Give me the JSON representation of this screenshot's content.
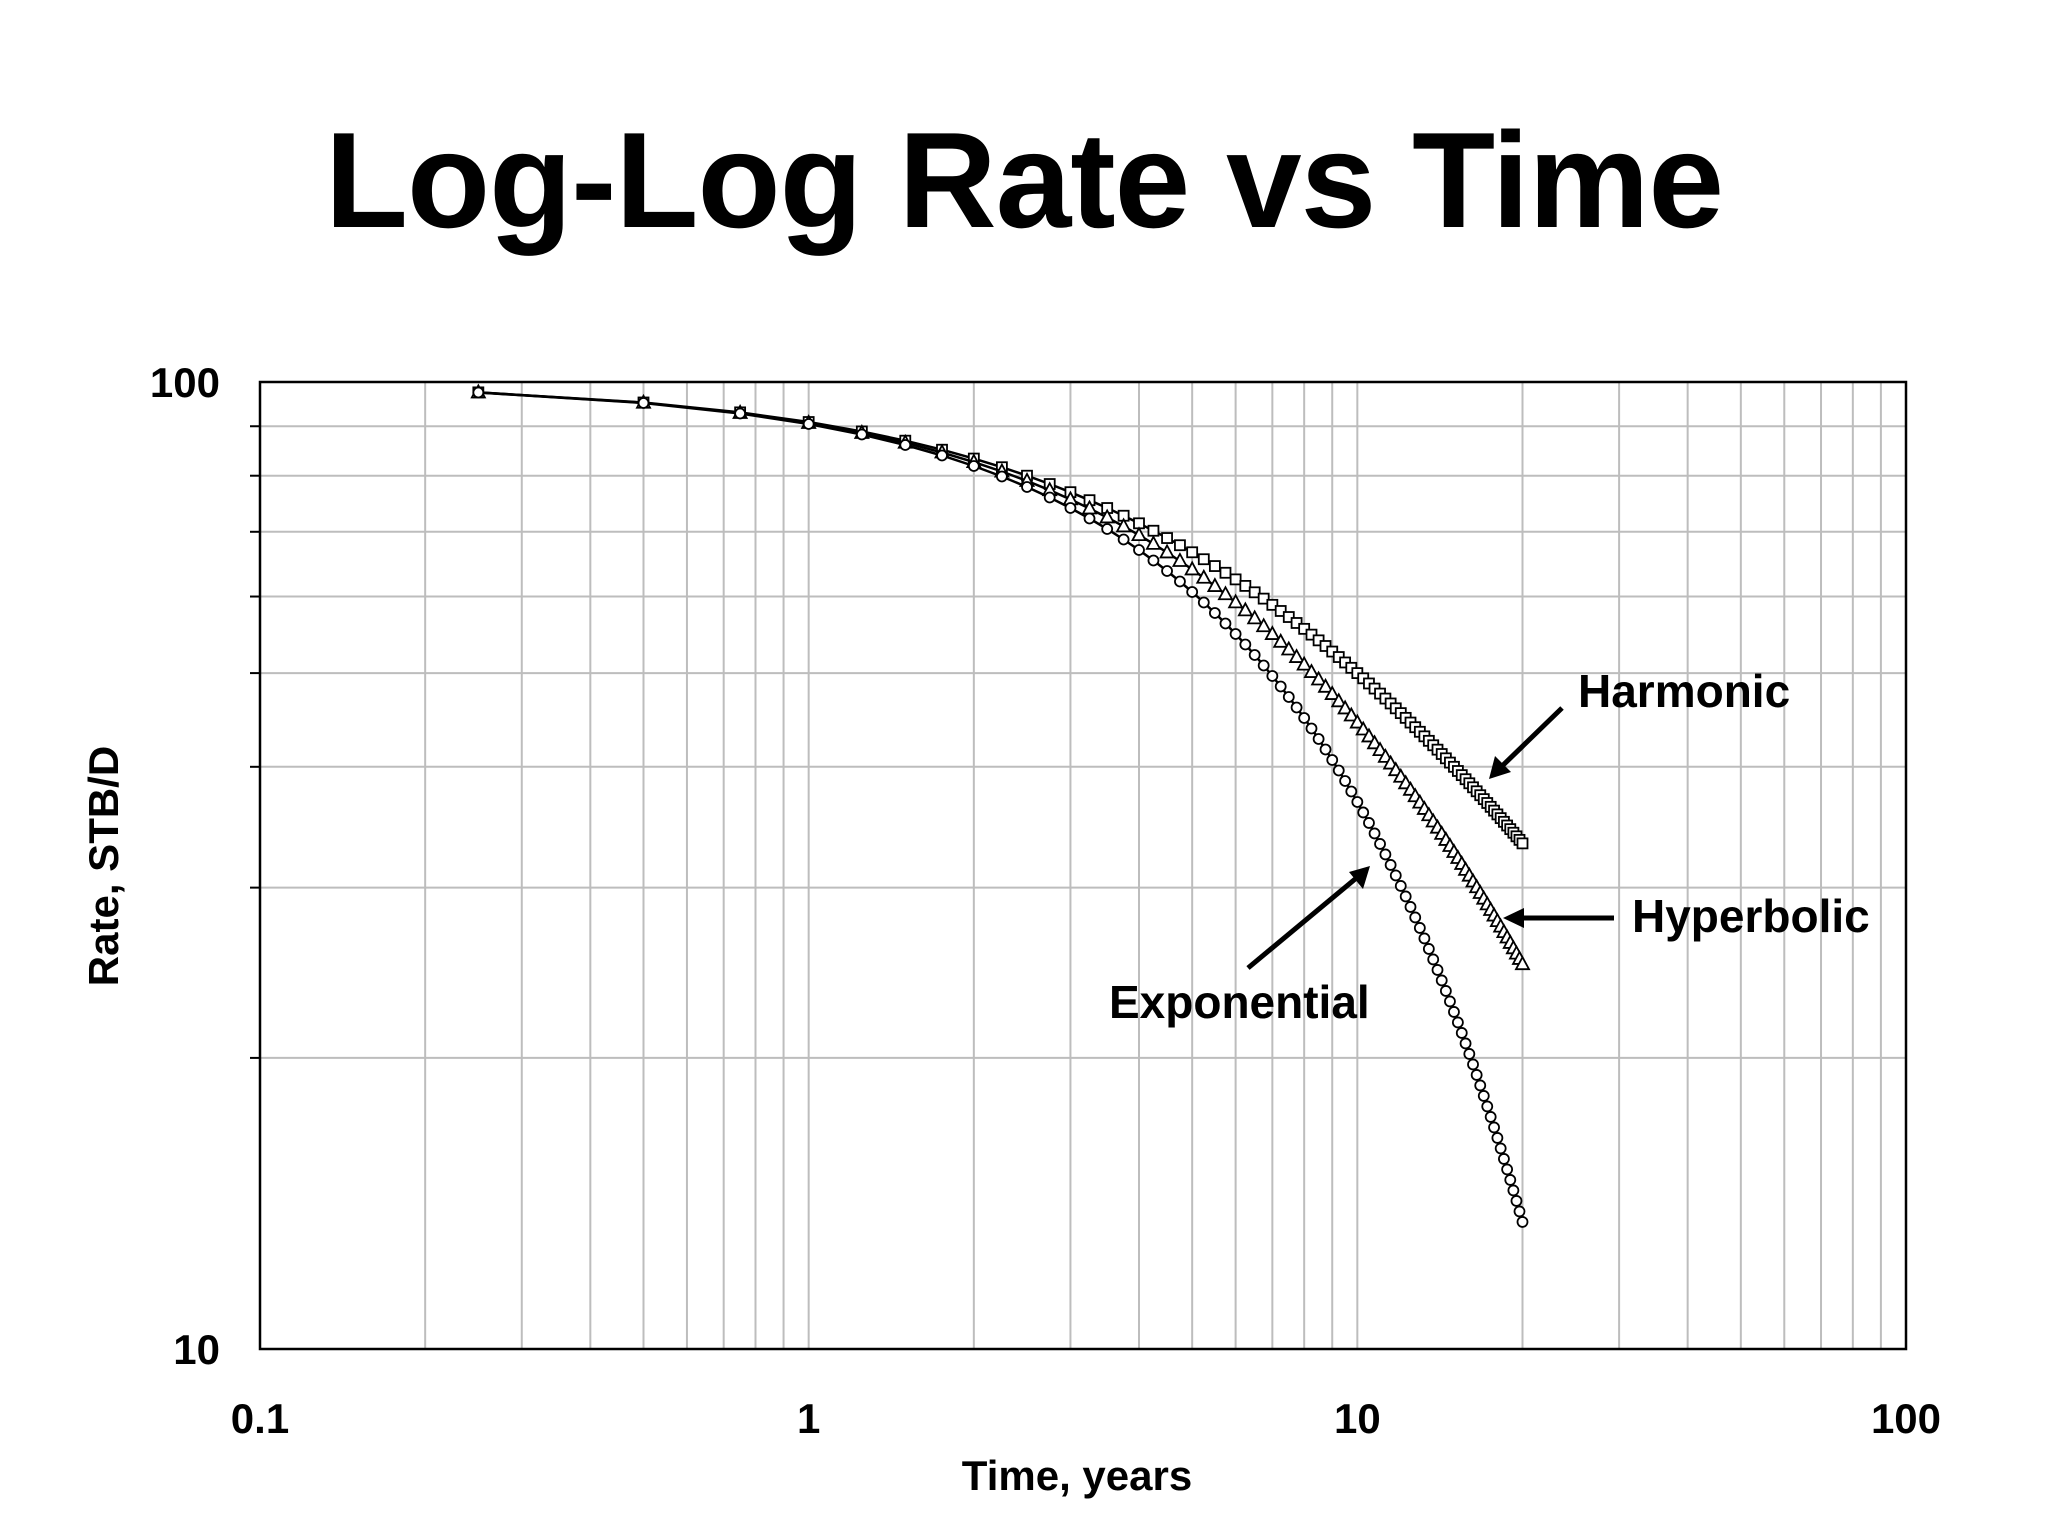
{
  "chart_data": {
    "type": "scatter",
    "title": "Log-Log Rate vs Time",
    "xlabel": "Time, years",
    "ylabel": "Rate, STB/D",
    "xscale": "log",
    "yscale": "log",
    "xlim": [
      0.1,
      100
    ],
    "ylim": [
      10,
      100
    ],
    "xticks": [
      "0.1",
      "1",
      "10",
      "100"
    ],
    "yticks": [
      "10",
      "100"
    ],
    "grid": true,
    "legend": "none",
    "annotations": [
      {
        "text": "Harmonic",
        "series": "Harmonic"
      },
      {
        "text": "Hyperbolic",
        "series": "Hyperbolic"
      },
      {
        "text": "Exponential",
        "series": "Exponential"
      }
    ],
    "series": [
      {
        "name": "Harmonic",
        "marker": "square",
        "qi": 100,
        "di": 0.1,
        "b": 1,
        "x_start": 0.25,
        "x_end": 20,
        "x_step": 0.25
      },
      {
        "name": "Hyperbolic",
        "marker": "triangle",
        "qi": 100,
        "di": 0.1,
        "b": 0.5,
        "x_start": 0.25,
        "x_end": 20,
        "x_step": 0.25
      },
      {
        "name": "Exponential",
        "marker": "circle",
        "qi": 100,
        "di": 0.1,
        "b": 0,
        "x_start": 0.25,
        "x_end": 20,
        "x_step": 0.25
      }
    ]
  }
}
